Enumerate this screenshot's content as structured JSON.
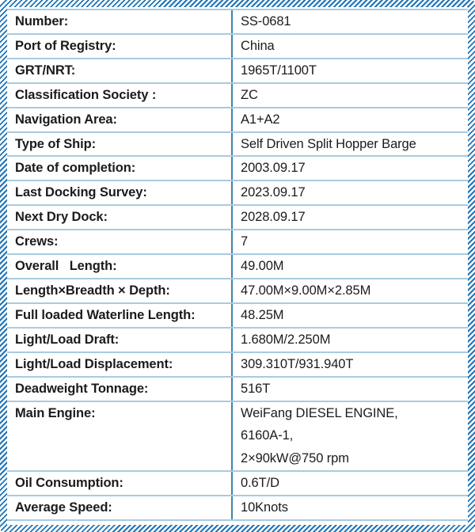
{
  "colors": {
    "hatch_border_blue": "#1f74b5",
    "row_separator_blue": "#a9cbdf",
    "column_divider_blue": "#4283ac",
    "text_color": "#1b1b1d"
  },
  "table": {
    "rows": [
      {
        "label": "Number:",
        "value": "SS-0681"
      },
      {
        "label": "Port of Registry:",
        "value": "China"
      },
      {
        "label": "GRT/NRT:",
        "value": "1965T/1100T"
      },
      {
        "label": "Classification Society :",
        "value": "ZC"
      },
      {
        "label": "Navigation Area:",
        "value": "A1+A2"
      },
      {
        "label": "Type of Ship:",
        "value": "Self Driven Split Hopper Barge"
      },
      {
        "label": "Date of completion:",
        "value": "2003.09.17"
      },
      {
        "label": "Last Docking Survey:",
        "value": "2023.09.17"
      },
      {
        "label": "Next Dry Dock:",
        "value": "2028.09.17"
      },
      {
        "label": "Crews:",
        "value": "7"
      },
      {
        "label": "Overall   Length:",
        "value": "49.00M"
      },
      {
        "label": "Length×Breadth × Depth:",
        "value": "47.00M×9.00M×2.85M"
      },
      {
        "label": "Full loaded Waterline Length:",
        "value": "48.25M"
      },
      {
        "label": "Light/Load Draft:",
        "value": "1.680M/2.250M"
      },
      {
        "label": "Light/Load Displacement:",
        "value": "309.310T/931.940T"
      },
      {
        "label": "Deadweight Tonnage:",
        "value": "516T"
      },
      {
        "label": "Main Engine:",
        "value": "WeiFang DIESEL ENGINE,\n6160A-1,\n2×90kW@750 rpm"
      },
      {
        "label": "Oil Consumption:",
        "value": "0.6T/D"
      },
      {
        "label": "Average Speed:",
        "value": "10Knots"
      }
    ]
  }
}
